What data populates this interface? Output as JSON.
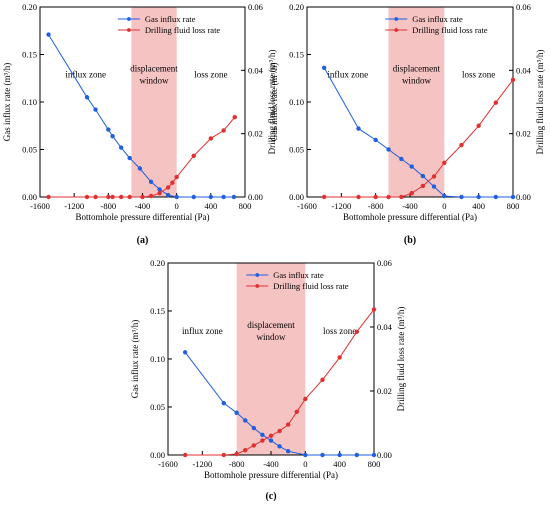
{
  "chart_data": [
    {
      "panel_label": "(a)",
      "type": "line",
      "xlabel": "Bottomhole pressure differential (Pa)",
      "ylabel_left": "Gas influx rate (m³/h)",
      "ylabel_right": "Drilling fluid loss rate (m³/h)",
      "xlim": [
        -1600,
        800
      ],
      "xticks": [
        -1600,
        -1200,
        -800,
        -400,
        0,
        400,
        800
      ],
      "xtick_labels": [
        "-1600",
        "-1200",
        "-800",
        "-400",
        "0",
        "400",
        "800"
      ],
      "ylim_left": [
        0,
        0.2
      ],
      "yticks_left": [
        "0.00",
        "0.05",
        "0.10",
        "0.15",
        "0.20"
      ],
      "ylim_right": [
        0,
        0.06
      ],
      "yticks_right": [
        "0.00",
        "0.02",
        "0.04",
        "0.06"
      ],
      "window": [
        -530,
        0
      ],
      "zone_labels": {
        "influx": "influx zone",
        "window_line1": "displacement",
        "window_line2": "window",
        "loss": "loss zone"
      },
      "legend": [
        "Gas influx rate",
        "Drilling fluid loss rate"
      ],
      "legend_position": "top-right",
      "series": [
        {
          "name": "Gas influx rate",
          "axis": "left",
          "color": "#1f5fe0",
          "x": [
            -1500,
            -1050,
            -950,
            -800,
            -750,
            -650,
            -550,
            -430,
            -300,
            -200,
            -100,
            0,
            200,
            400,
            550,
            670
          ],
          "y": [
            0.171,
            0.105,
            0.092,
            0.071,
            0.064,
            0.052,
            0.041,
            0.03,
            0.016,
            0.008,
            0.002,
            0.0,
            0.0,
            0.0,
            0.0,
            0.0
          ]
        },
        {
          "name": "Drilling fluid loss rate",
          "axis": "right",
          "color": "#e03030",
          "x": [
            -1500,
            -1050,
            -950,
            -800,
            -750,
            -650,
            -550,
            -400,
            -300,
            -200,
            -100,
            -50,
            0,
            200,
            400,
            550,
            680
          ],
          "y": [
            0,
            0,
            0,
            0,
            0,
            0,
            0,
            0,
            0.0003,
            0.0012,
            0.003,
            0.0045,
            0.0063,
            0.013,
            0.0185,
            0.021,
            0.0252
          ]
        }
      ]
    },
    {
      "panel_label": "(b)",
      "type": "line",
      "xlabel": "Bottomhole pressure differential (Pa)",
      "ylabel_left": "Gas influx rate (m³/h)",
      "ylabel_right": "Drilling fluid loss rate (m³/h)",
      "xlim": [
        -1600,
        800
      ],
      "xticks": [
        -1600,
        -1200,
        -800,
        -400,
        0,
        400,
        800
      ],
      "xtick_labels": [
        "-1600",
        "-1200",
        "-800",
        "-400",
        "0",
        "400",
        "800"
      ],
      "ylim_left": [
        0,
        0.2
      ],
      "yticks_left": [
        "0.00",
        "0.05",
        "0.10",
        "0.15",
        "0.20"
      ],
      "ylim_right": [
        0,
        0.06
      ],
      "yticks_right": [
        "0.00",
        "0.02",
        "0.04",
        "0.06"
      ],
      "window": [
        -650,
        0
      ],
      "zone_labels": {
        "influx": "influx zone",
        "window_line1": "displacement",
        "window_line2": "window",
        "loss": "loss zone"
      },
      "legend": [
        "Gas influx rate",
        "Drilling fluid loss rate"
      ],
      "legend_position": "top-right",
      "series": [
        {
          "name": "Gas influx rate",
          "axis": "left",
          "color": "#1f5fe0",
          "x": [
            -1400,
            -1000,
            -800,
            -650,
            -500,
            -380,
            -250,
            -120,
            0,
            200,
            400,
            600,
            800
          ],
          "y": [
            0.136,
            0.072,
            0.06,
            0.05,
            0.04,
            0.032,
            0.022,
            0.011,
            0.001,
            0.0,
            0.0,
            0.0,
            0.0
          ]
        },
        {
          "name": "Drilling fluid loss rate",
          "axis": "right",
          "color": "#e03030",
          "x": [
            -1400,
            -1000,
            -800,
            -650,
            -500,
            -380,
            -250,
            -120,
            0,
            200,
            400,
            600,
            800
          ],
          "y": [
            0,
            0,
            0,
            0,
            0,
            0.0012,
            0.0035,
            0.0065,
            0.0108,
            0.0164,
            0.0225,
            0.0298,
            0.037
          ]
        }
      ]
    },
    {
      "panel_label": "(c)",
      "type": "line",
      "xlabel": "Bottomhole pressure differential (Pa)",
      "ylabel_left": "Gas influx rate (m³/h)",
      "ylabel_right": "Drilling fluid loss rate (m³/h)",
      "xlim": [
        -1600,
        800
      ],
      "xticks": [
        -1600,
        -1200,
        -800,
        -400,
        0,
        400,
        800
      ],
      "xtick_labels": [
        "-1600",
        "-1200",
        "-800",
        "-400",
        "0",
        "400",
        "800"
      ],
      "ylim_left": [
        0,
        0.2
      ],
      "yticks_left": [
        "0.00",
        "0.05",
        "0.10",
        "0.15",
        "0.20"
      ],
      "ylim_right": [
        0,
        0.06
      ],
      "yticks_right": [
        "0.00",
        "0.02",
        "0.04",
        "0.06"
      ],
      "window": [
        -800,
        0
      ],
      "zone_labels": {
        "influx": "influx zone",
        "window_line1": "displacement",
        "window_line2": "window",
        "loss": "loss zone"
      },
      "legend": [
        "Gas influx rate",
        "Drilling fluid loss rate"
      ],
      "legend_position": "top-right",
      "series": [
        {
          "name": "Gas influx rate",
          "axis": "left",
          "color": "#1f5fe0",
          "x": [
            -1400,
            -950,
            -800,
            -700,
            -600,
            -500,
            -400,
            -300,
            -200,
            0,
            200,
            400,
            600,
            800
          ],
          "y": [
            0.107,
            0.054,
            0.044,
            0.036,
            0.028,
            0.021,
            0.015,
            0.009,
            0.004,
            0.0,
            0.0,
            0.0,
            0.0,
            0.0
          ]
        },
        {
          "name": "Drilling fluid loss rate",
          "axis": "right",
          "color": "#e03030",
          "x": [
            -1400,
            -950,
            -800,
            -700,
            -600,
            -500,
            -400,
            -300,
            -200,
            -100,
            0,
            200,
            400,
            600,
            800
          ],
          "y": [
            0,
            0,
            0.0003,
            0.0015,
            0.003,
            0.0045,
            0.006,
            0.0075,
            0.0095,
            0.0135,
            0.0175,
            0.0235,
            0.0305,
            0.0385,
            0.0455
          ]
        }
      ]
    }
  ]
}
